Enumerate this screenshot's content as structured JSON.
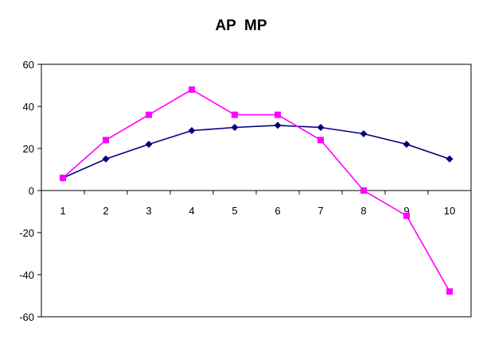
{
  "chart_data": {
    "type": "line",
    "title": "AP  MP",
    "xlabel": "",
    "ylabel": "",
    "categories": [
      "1",
      "2",
      "3",
      "4",
      "5",
      "6",
      "7",
      "8",
      "9",
      "10"
    ],
    "ylim": [
      -60,
      60
    ],
    "yticks": [
      "60",
      "40",
      "20",
      "0",
      "-20",
      "-40",
      "-60"
    ],
    "grid": false,
    "legend": "none",
    "series": [
      {
        "color": "#000080",
        "marker": "diamond",
        "values": [
          6,
          15,
          22,
          28.5,
          30,
          31,
          30,
          27,
          22,
          15
        ]
      },
      {
        "color": "#ff00ff",
        "marker": "square",
        "values": [
          6,
          24,
          36,
          48,
          36,
          36,
          24,
          0,
          -12,
          -48
        ]
      }
    ]
  }
}
